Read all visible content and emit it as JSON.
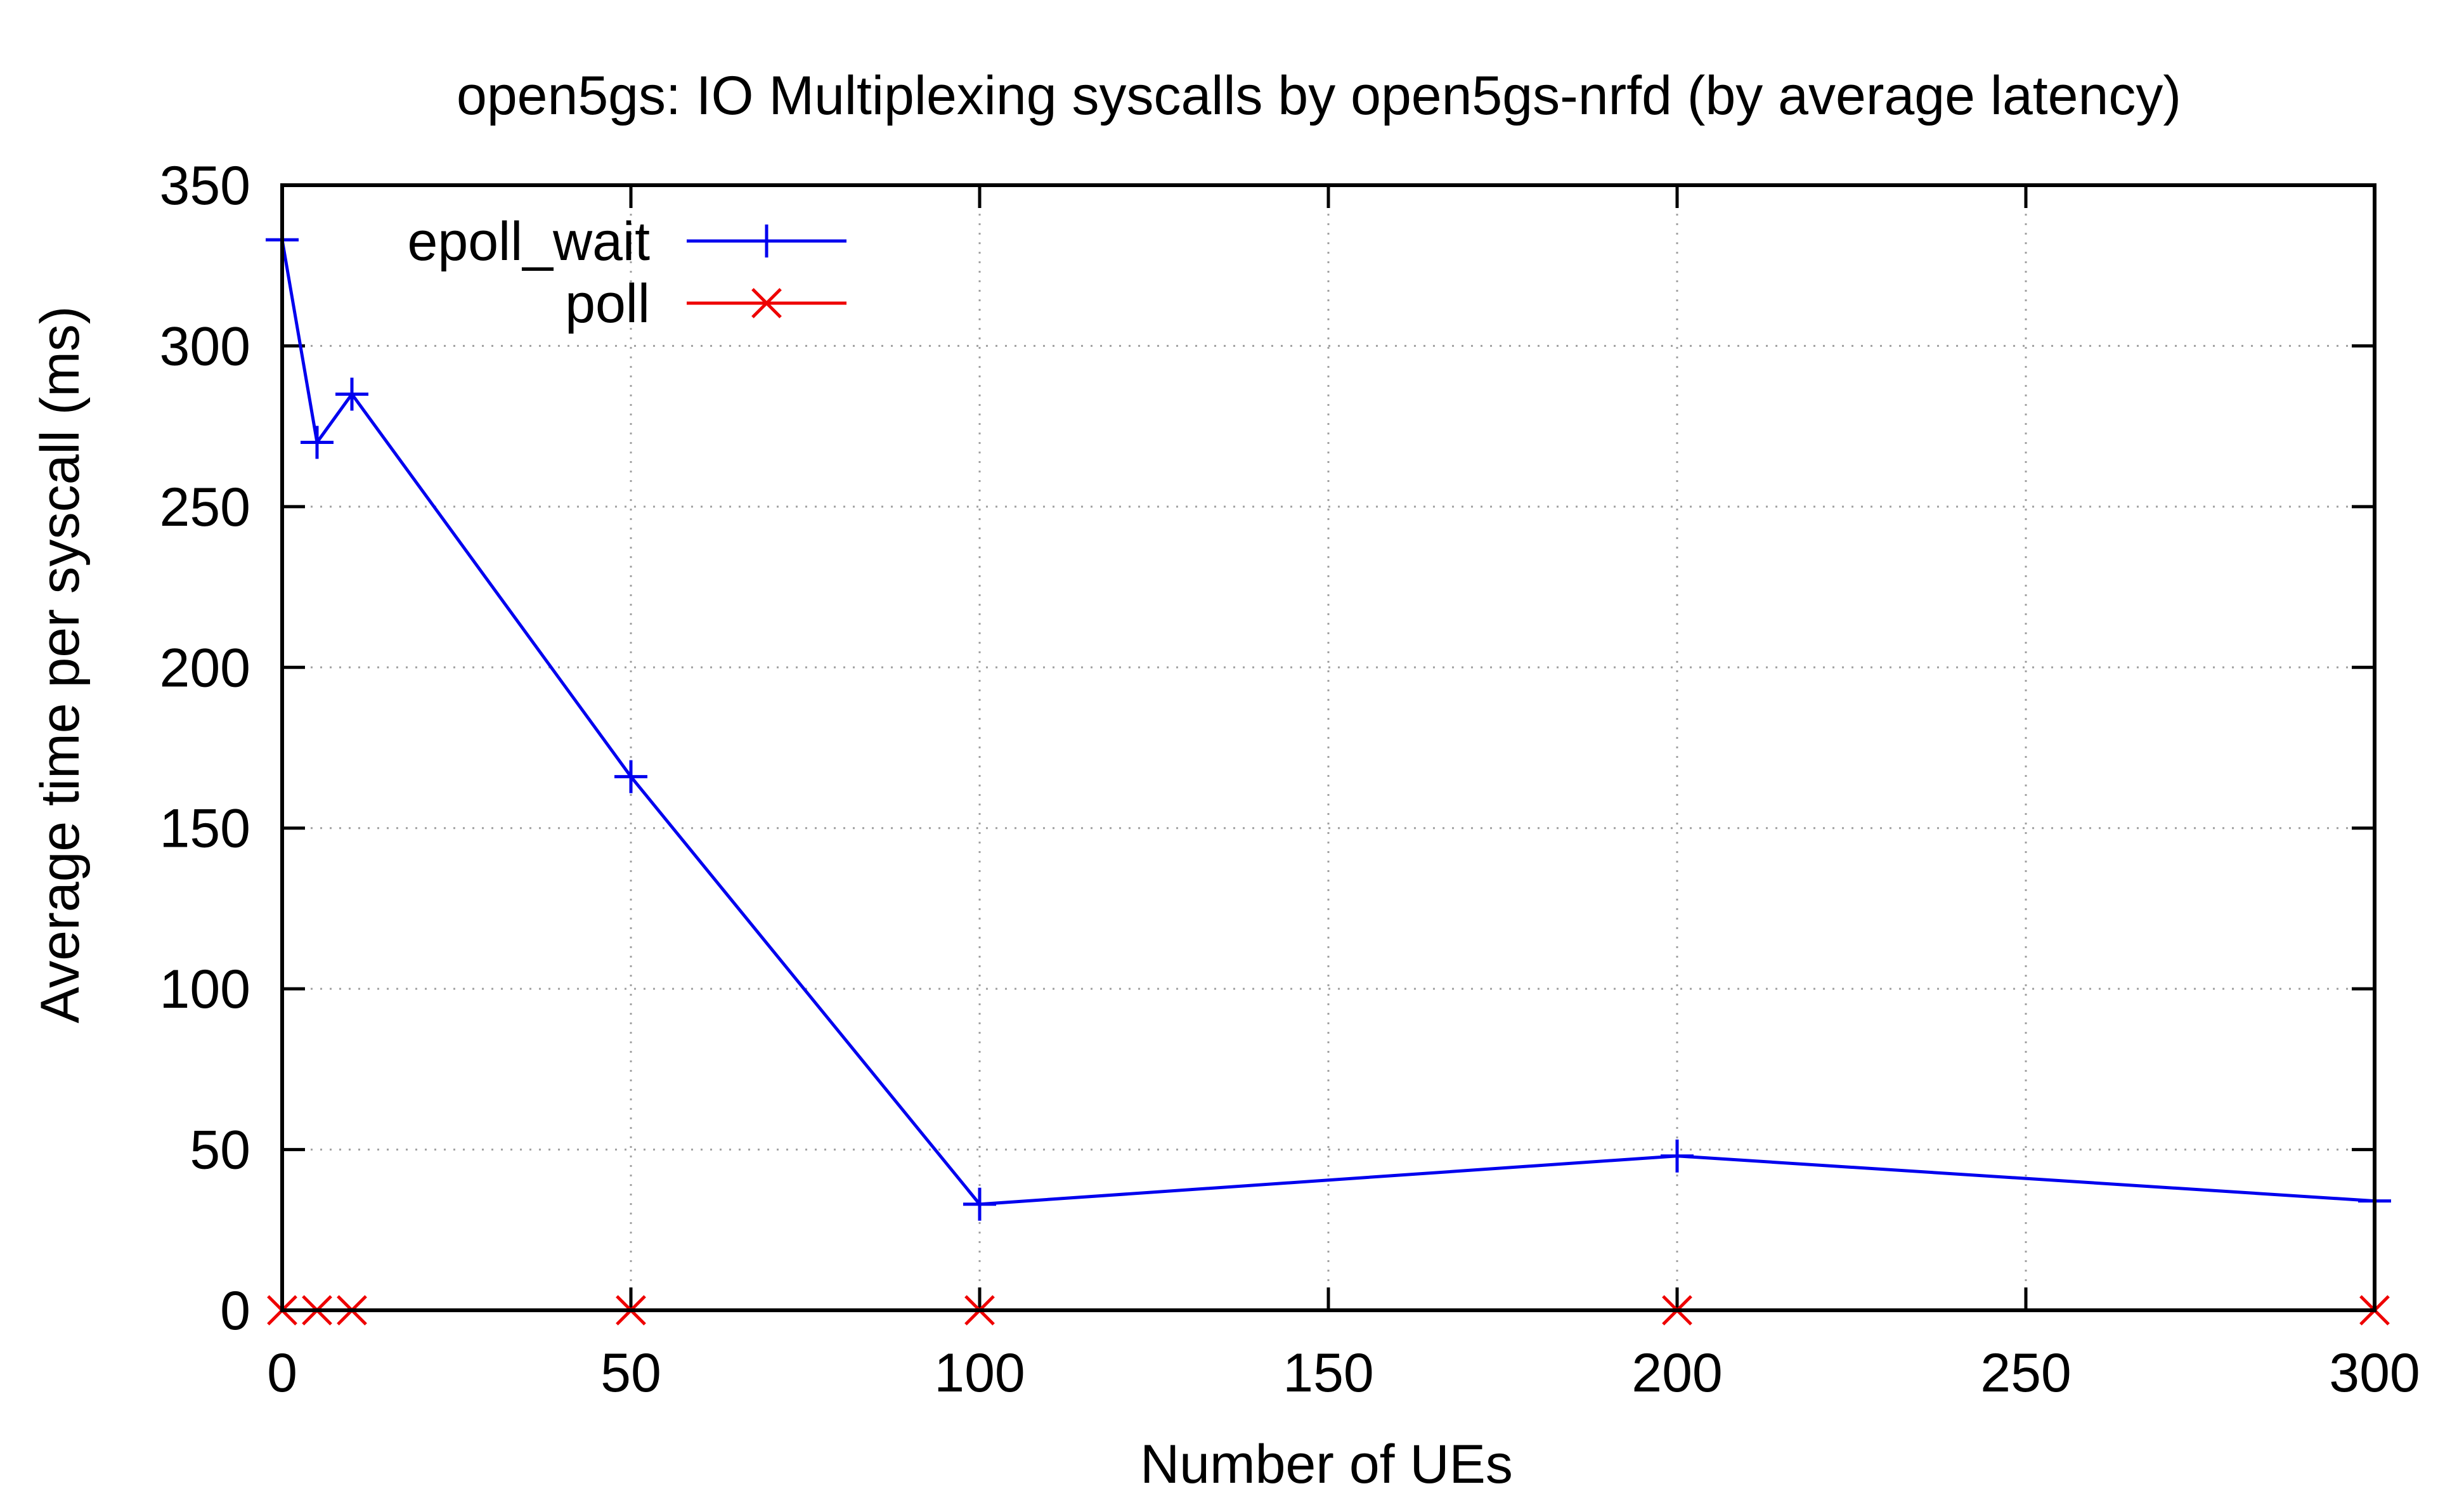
{
  "chart_data": {
    "type": "line",
    "title": "open5gs: IO Multiplexing syscalls by open5gs-nrfd (by average latency)",
    "xlabel": "Number of UEs",
    "ylabel": "Average time per syscall (ms)",
    "xlim": [
      0,
      300
    ],
    "ylim": [
      0,
      350
    ],
    "xticks": [
      0,
      50,
      100,
      150,
      200,
      250,
      300
    ],
    "yticks": [
      0,
      50,
      100,
      150,
      200,
      250,
      300,
      350
    ],
    "xtick_labels": [
      "0",
      "50",
      "100",
      "150",
      "200",
      "250",
      "300"
    ],
    "ytick_labels": [
      "0",
      "50",
      "100",
      "150",
      "200",
      "250",
      "300",
      "350"
    ],
    "grid": true,
    "legend_position": "top-left",
    "series": [
      {
        "name": "epoll_wait",
        "color": "#0000ee",
        "marker": "plus",
        "points": [
          {
            "x": 0,
            "y": 333
          },
          {
            "x": 5,
            "y": 270
          },
          {
            "x": 10,
            "y": 285
          },
          {
            "x": 50,
            "y": 166
          },
          {
            "x": 100,
            "y": 33
          },
          {
            "x": 200,
            "y": 48
          },
          {
            "x": 300,
            "y": 34
          }
        ]
      },
      {
        "name": "poll",
        "color": "#ee0000",
        "marker": "cross",
        "points": [
          {
            "x": 0,
            "y": 0
          },
          {
            "x": 5,
            "y": 0
          },
          {
            "x": 10,
            "y": 0
          },
          {
            "x": 50,
            "y": 0
          },
          {
            "x": 100,
            "y": 0
          },
          {
            "x": 200,
            "y": 0
          },
          {
            "x": 300,
            "y": 0
          }
        ]
      }
    ]
  }
}
